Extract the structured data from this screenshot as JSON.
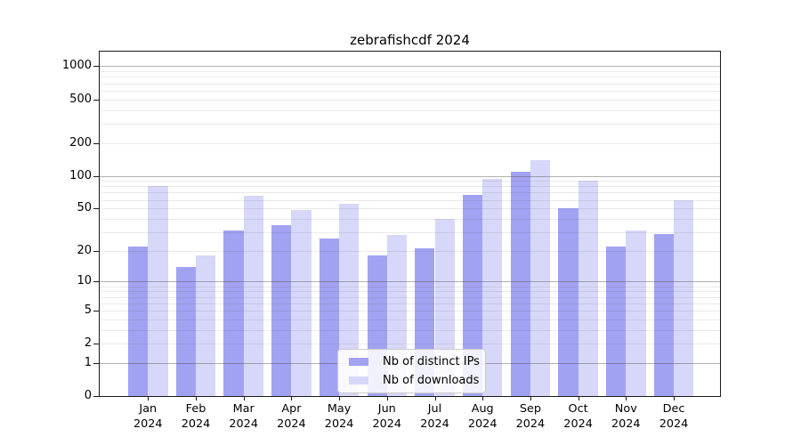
{
  "chart_data": {
    "type": "bar",
    "title": "zebrafishcdf 2024",
    "categories": [
      "Jan 2024",
      "Feb 2024",
      "Mar 2024",
      "Apr 2024",
      "May 2024",
      "Jun 2024",
      "Jul 2024",
      "Aug 2024",
      "Sep 2024",
      "Oct 2024",
      "Nov 2024",
      "Dec 2024"
    ],
    "series": [
      {
        "name": "Nb of distinct IPs",
        "color": "#a2a2f2",
        "values": [
          22,
          14,
          31,
          35,
          26,
          18,
          21,
          67,
          108,
          50,
          22,
          29
        ]
      },
      {
        "name": "Nb of downloads",
        "color": "#d7d7f9",
        "values": [
          80,
          18,
          65,
          48,
          55,
          28,
          40,
          93,
          138,
          90,
          31,
          60
        ]
      }
    ],
    "xlabel": "",
    "ylabel": "",
    "yscale": "log1p",
    "y_ticks": [
      0,
      1,
      2,
      5,
      10,
      20,
      50,
      100,
      200,
      500,
      1000
    ],
    "ylim": [
      0,
      1350
    ],
    "grid": true,
    "legend_position": "lower center"
  }
}
